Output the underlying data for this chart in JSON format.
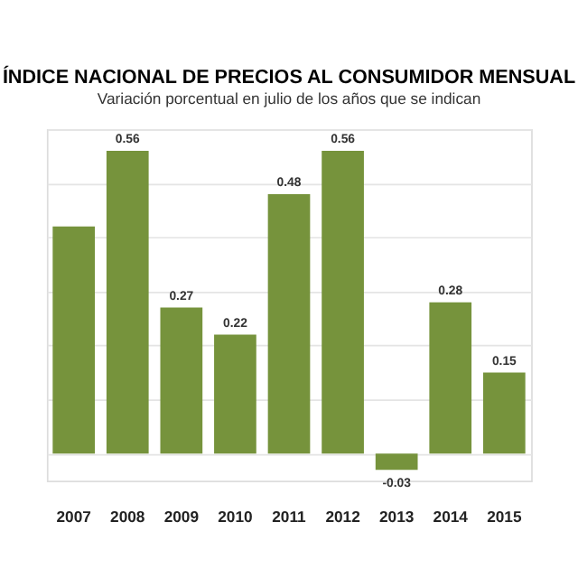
{
  "chart_data": {
    "type": "bar",
    "title": "ÍNDICE NACIONAL DE PRECIOS AL CONSUMIDOR MENSUAL",
    "subtitle": "Variación porcentual en julio de los años que se indican",
    "categories": [
      "2007",
      "2008",
      "2009",
      "2010",
      "2011",
      "2012",
      "2013",
      "2014",
      "2015"
    ],
    "values": [
      0.42,
      0.56,
      0.27,
      0.22,
      0.48,
      0.56,
      -0.03,
      0.28,
      0.15
    ],
    "value_labels": [
      null,
      "0.56",
      "0.27",
      "0.22",
      "0.48",
      "0.56",
      "-0.03",
      "0.28",
      "0.15"
    ],
    "color": "#76933c",
    "ylim": [
      -0.05,
      0.6
    ],
    "grid": "y",
    "tick_labels": "x"
  }
}
